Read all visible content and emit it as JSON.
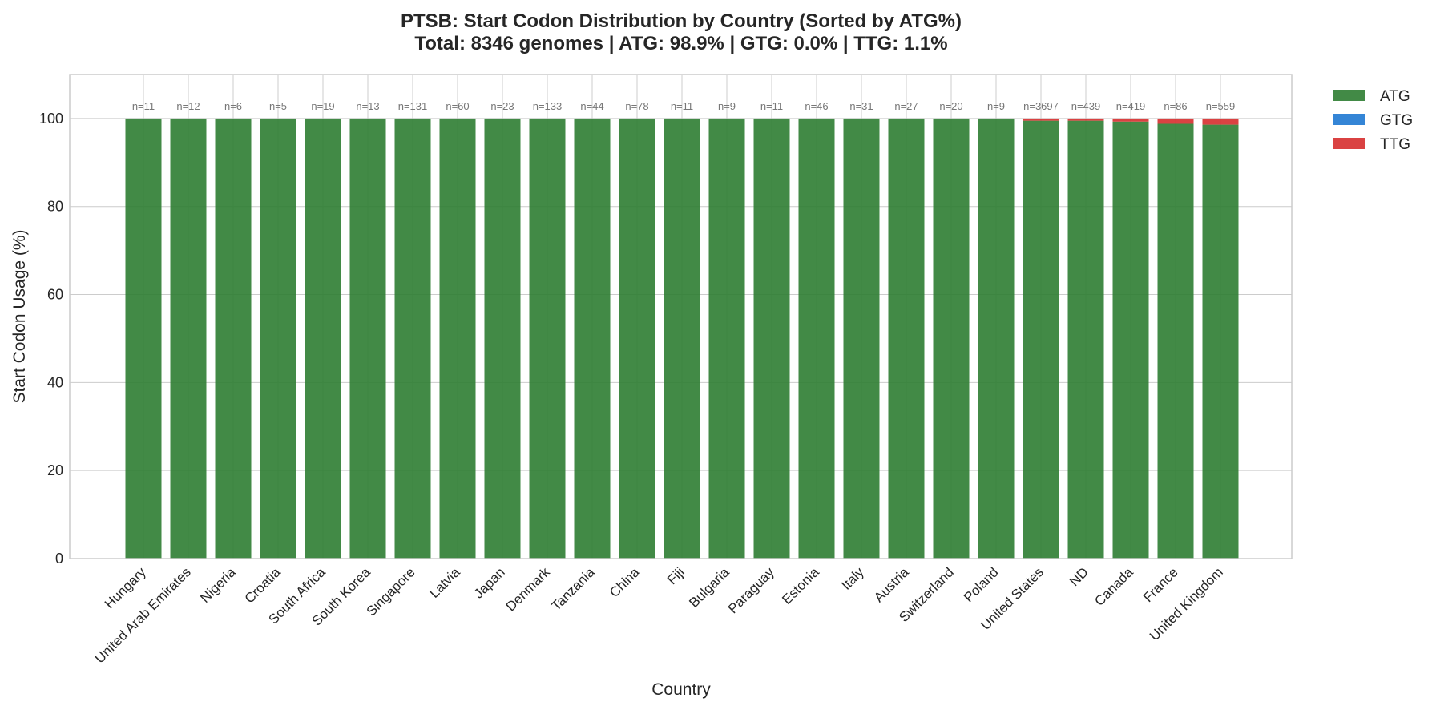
{
  "chart_data": {
    "type": "bar",
    "stacked": true,
    "title": "PTSB: Start Codon Distribution by Country (Sorted by ATG%)",
    "subtitle": "Total: 8346 genomes | ATG: 98.9% | GTG: 0.0% | TTG: 1.1%",
    "xlabel": "Country",
    "ylabel": "Start Codon Usage (%)",
    "ylim": [
      0,
      110
    ],
    "yticks": [
      "0",
      "20",
      "40",
      "60",
      "80",
      "100"
    ],
    "grid": true,
    "legend_position": "outside-top-right",
    "categories": [
      "Hungary",
      "United Arab Emirates",
      "Nigeria",
      "Croatia",
      "South Africa",
      "South Korea",
      "Singapore",
      "Latvia",
      "Japan",
      "Denmark",
      "Tanzania",
      "China",
      "Fiji",
      "Bulgaria",
      "Paraguay",
      "Estonia",
      "Italy",
      "Austria",
      "Switzerland",
      "Poland",
      "United States",
      "ND",
      "Canada",
      "France",
      "United Kingdom"
    ],
    "counts": [
      "n=11",
      "n=12",
      "n=6",
      "n=5",
      "n=19",
      "n=13",
      "n=131",
      "n=60",
      "n=23",
      "n=133",
      "n=44",
      "n=78",
      "n=11",
      "n=9",
      "n=11",
      "n=46",
      "n=31",
      "n=27",
      "n=20",
      "n=9",
      "n=3697",
      "n=439",
      "n=419",
      "n=86",
      "n=559"
    ],
    "series": [
      {
        "name": "ATG",
        "color": "#2e7d32",
        "values": [
          100,
          100,
          100,
          100,
          100,
          100,
          100,
          100,
          100,
          100,
          100,
          100,
          100,
          100,
          100,
          100,
          100,
          100,
          100,
          100,
          99.5,
          99.5,
          99.3,
          98.8,
          98.6
        ]
      },
      {
        "name": "GTG",
        "color": "#1e78d2",
        "values": [
          0,
          0,
          0,
          0,
          0,
          0,
          0,
          0,
          0,
          0,
          0,
          0,
          0,
          0,
          0,
          0,
          0,
          0,
          0,
          0,
          0,
          0,
          0,
          0,
          0
        ]
      },
      {
        "name": "TTG",
        "color": "#d62d2d",
        "values": [
          0,
          0,
          0,
          0,
          0,
          0,
          0,
          0,
          0,
          0,
          0,
          0,
          0,
          0,
          0,
          0,
          0,
          0,
          0,
          0,
          0.5,
          0.5,
          0.7,
          1.2,
          1.4
        ]
      }
    ]
  }
}
